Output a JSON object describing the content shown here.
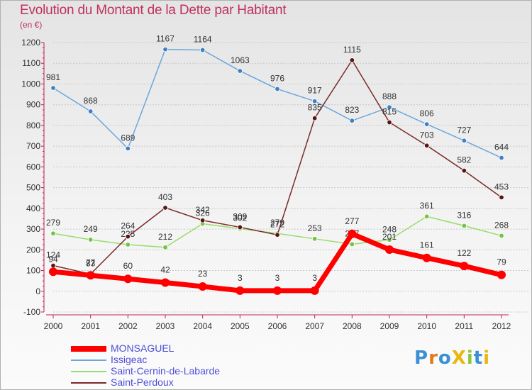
{
  "title": "Evolution du Montant de la Dette par Habitant",
  "subtitle": "(en €)",
  "logo_text": "ProXiti",
  "chart_data": {
    "type": "line",
    "title": "Evolution du Montant de la Dette par Habitant",
    "subtitle": "(en €)",
    "xlabel": "",
    "ylabel": "",
    "x": [
      "2000",
      "2001",
      "2002",
      "2003",
      "2004",
      "2005",
      "2006",
      "2007",
      "2008",
      "2009",
      "2010",
      "2011",
      "2012"
    ],
    "ylim": [
      -100,
      1200
    ],
    "yticks": [
      -100,
      0,
      100,
      200,
      300,
      400,
      500,
      600,
      700,
      800,
      900,
      1000,
      1100,
      1200
    ],
    "grid": "horizontal",
    "legend_position": "bottom-left",
    "series": [
      {
        "name": "MONSAGUEL",
        "color": "#ff0000",
        "values": [
          94,
          77,
          60,
          42,
          23,
          3,
          3,
          3,
          277,
          201,
          161,
          122,
          79
        ]
      },
      {
        "name": "Issigeac",
        "color": "#6aa7dc",
        "values": [
          981,
          868,
          689,
          1167,
          1164,
          1063,
          976,
          917,
          823,
          888,
          806,
          727,
          644
        ]
      },
      {
        "name": "Saint-Cernin-de-Labarde",
        "color": "#98dc6a",
        "values": [
          279,
          249,
          225,
          212,
          326,
          302,
          279,
          253,
          227,
          248,
          361,
          316,
          268
        ]
      },
      {
        "name": "Saint-Perdoux",
        "color": "#7a2a2a",
        "values": [
          124,
          83,
          264,
          403,
          342,
          309,
          272,
          835,
          1115,
          815,
          703,
          582,
          453
        ]
      }
    ]
  }
}
